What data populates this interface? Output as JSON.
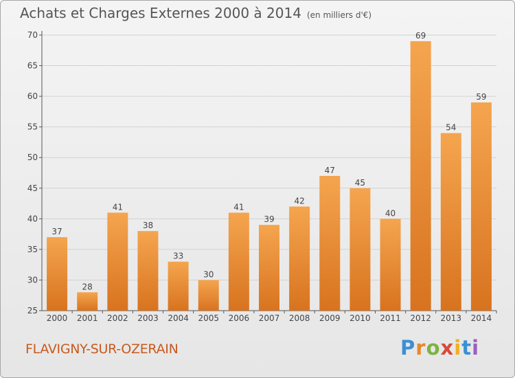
{
  "title": "Achats et Charges Externes 2000 à 2014",
  "subtitle": "(en milliers d'€)",
  "commune": "FLAVIGNY-SUR-OZERAIN",
  "logo_text": "Proxiti",
  "colors": {
    "bar_light": "#f5a54f",
    "bar_dark": "#d8731f",
    "commune_text": "#c85a1e",
    "grid": "#d2d2d2"
  },
  "chart_data": {
    "type": "bar",
    "categories": [
      "2000",
      "2001",
      "2002",
      "2003",
      "2004",
      "2005",
      "2006",
      "2007",
      "2008",
      "2009",
      "2010",
      "2011",
      "2012",
      "2013",
      "2014"
    ],
    "values": [
      37,
      28,
      41,
      38,
      33,
      30,
      41,
      39,
      42,
      47,
      45,
      40,
      69,
      54,
      59
    ],
    "yticks": [
      25,
      30,
      35,
      40,
      45,
      50,
      55,
      60,
      65,
      70
    ],
    "ylim": [
      25,
      70
    ],
    "grid": true,
    "data_labels": true
  }
}
